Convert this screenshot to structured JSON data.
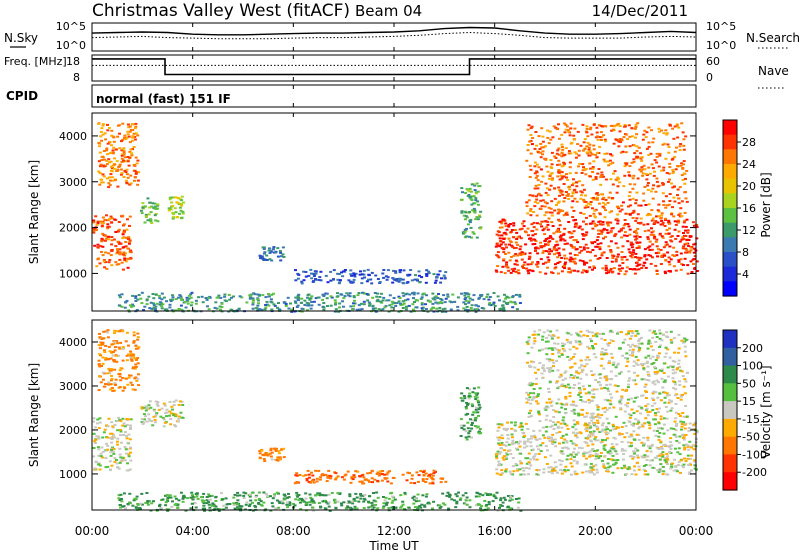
{
  "header": {
    "site": "Christmas Valley West (fitACF)",
    "beam": "Beam 04",
    "date": "14/Dec/2011"
  },
  "top_panels": {
    "nsky_label": "N.Sky",
    "nsearch_label": "N.Search",
    "nsky_ticks": [
      "10^5",
      "10^0"
    ],
    "nsearch_ticks": [
      "10^5",
      "10^0"
    ],
    "freq_label": "Freq. [MHz]",
    "freq_ticks": [
      "18",
      "8"
    ],
    "nave_label": "Nave",
    "nave_ticks": [
      "60",
      "0"
    ],
    "cpid_label": "CPID",
    "cpid_text": "normal (fast) 151 IF"
  },
  "chart_data": [
    {
      "type": "line",
      "title": "N.Sky / N.Search",
      "x": [
        0,
        1,
        2,
        3,
        4,
        5,
        6,
        7,
        8,
        9,
        10,
        11,
        12,
        13,
        14,
        15,
        16,
        17,
        18,
        19,
        20,
        21,
        22,
        23,
        24
      ],
      "series": [
        {
          "name": "N.Sky",
          "values": [
            3.2,
            3.3,
            3.4,
            3.3,
            3.0,
            2.9,
            2.9,
            3.0,
            3.1,
            3.2,
            3.2,
            3.3,
            3.4,
            3.6,
            4.0,
            4.2,
            4.1,
            3.6,
            3.2,
            3.0,
            3.0,
            3.1,
            3.3,
            3.5,
            3.3
          ]
        },
        {
          "name": "N.Search",
          "values": [
            2.4,
            2.5,
            2.6,
            2.4,
            2.3,
            2.2,
            2.2,
            2.2,
            2.3,
            2.4,
            2.4,
            2.5,
            2.6,
            2.8,
            3.1,
            3.3,
            3.1,
            2.8,
            2.4,
            2.3,
            2.3,
            2.3,
            2.5,
            2.6,
            2.5
          ]
        }
      ],
      "ylim": [
        0,
        5
      ]
    },
    {
      "type": "line",
      "title": "Freq. / Nave",
      "x": [
        0,
        2.9,
        2.9,
        15,
        15,
        24
      ],
      "series": [
        {
          "name": "Freq.",
          "values": [
            16.5,
            16.5,
            10.5,
            10.5,
            16.5,
            16.5
          ]
        },
        {
          "name": "Nave",
          "values": [
            14,
            14,
            14,
            14,
            14,
            14
          ]
        }
      ],
      "ylim": [
        8,
        18
      ]
    },
    {
      "type": "heatmap",
      "title": "Power",
      "xlabel": "Time UT",
      "ylabel": "Slant Range [km]",
      "x_ticks": [
        "00:00",
        "04:00",
        "08:00",
        "12:00",
        "16:00",
        "20:00",
        "00:00"
      ],
      "y_ticks": [
        "1000",
        "2000",
        "3000",
        "4000"
      ],
      "xlim": [
        0,
        24
      ],
      "ylim": [
        180,
        4500
      ],
      "colorbar_label": "Power [dB]",
      "colorbar_ticks": [
        "28",
        "24",
        "20",
        "16",
        "12",
        "8",
        "4"
      ],
      "colorbar_colors": [
        "#ff0000",
        "#ff3300",
        "#ff7700",
        "#ffaa00",
        "#e8c400",
        "#a8d420",
        "#5cc040",
        "#3a9a6a",
        "#3a7ab0",
        "#2a50c8",
        "#1a2ad8",
        "#0000ff"
      ],
      "regions": [
        {
          "t0": 0.0,
          "t1": 1.5,
          "r0": 1100,
          "r1": 2300,
          "level": 26
        },
        {
          "t0": 0.2,
          "t1": 1.8,
          "r0": 2900,
          "r1": 4300,
          "level": 24
        },
        {
          "t0": 1.9,
          "t1": 2.6,
          "r0": 2100,
          "r1": 2700,
          "level": 14
        },
        {
          "t0": 3.0,
          "t1": 3.6,
          "r0": 2200,
          "r1": 2700,
          "level": 16
        },
        {
          "t0": 6.6,
          "t1": 7.6,
          "r0": 1300,
          "r1": 1600,
          "level": 8
        },
        {
          "t0": 8.0,
          "t1": 14.0,
          "r0": 800,
          "r1": 1100,
          "level": 6
        },
        {
          "t0": 1.0,
          "t1": 17.0,
          "r0": 180,
          "r1": 600,
          "level": 10
        },
        {
          "t0": 14.6,
          "t1": 15.4,
          "r0": 1800,
          "r1": 3000,
          "level": 12
        },
        {
          "t0": 16.0,
          "t1": 24.0,
          "r0": 1000,
          "r1": 2200,
          "level": 28
        },
        {
          "t0": 17.2,
          "t1": 23.6,
          "r0": 2200,
          "r1": 4300,
          "level": 25
        }
      ]
    },
    {
      "type": "heatmap",
      "title": "Velocity",
      "xlabel": "Time UT",
      "ylabel": "Slant Range [km]",
      "x_ticks": [
        "00:00",
        "04:00",
        "08:00",
        "12:00",
        "16:00",
        "20:00",
        "00:00"
      ],
      "y_ticks": [
        "1000",
        "2000",
        "3000",
        "4000"
      ],
      "xlim": [
        0,
        24
      ],
      "ylim": [
        180,
        4500
      ],
      "colorbar_label": "Velocity [m s⁻¹]",
      "colorbar_ticks": [
        "200",
        "100",
        "50",
        "15",
        "-15",
        "-50",
        "-100",
        "-200"
      ],
      "colorbar_colors": [
        "#2030c0",
        "#3060a0",
        "#2e8a4a",
        "#55c040",
        "#c8c8c0",
        "#ffaa00",
        "#ff7700",
        "#ff3300",
        "#ff0000"
      ],
      "regions": [
        {
          "t0": 0.0,
          "t1": 1.5,
          "r0": 1100,
          "r1": 2300,
          "velocity": 0
        },
        {
          "t0": 0.2,
          "t1": 1.8,
          "r0": 2900,
          "r1": 4300,
          "velocity": -40
        },
        {
          "t0": 1.9,
          "t1": 3.6,
          "r0": 2100,
          "r1": 2700,
          "velocity": 0
        },
        {
          "t0": 6.6,
          "t1": 7.6,
          "r0": 1300,
          "r1": 1600,
          "velocity": -40
        },
        {
          "t0": 8.0,
          "t1": 14.0,
          "r0": 800,
          "r1": 1100,
          "velocity": -60
        },
        {
          "t0": 1.0,
          "t1": 17.0,
          "r0": 180,
          "r1": 600,
          "velocity": 40
        },
        {
          "t0": 14.6,
          "t1": 15.4,
          "r0": 1800,
          "r1": 3000,
          "velocity": 40
        },
        {
          "t0": 16.0,
          "t1": 24.0,
          "r0": 1000,
          "r1": 2200,
          "velocity": 0
        },
        {
          "t0": 17.2,
          "t1": 23.6,
          "r0": 2200,
          "r1": 4300,
          "velocity": 0
        }
      ]
    }
  ]
}
